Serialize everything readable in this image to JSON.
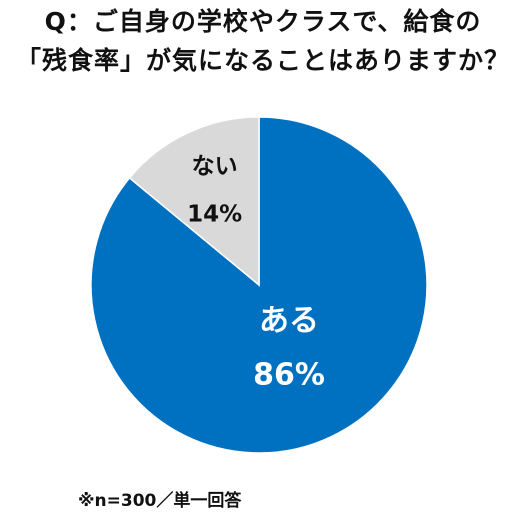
{
  "title_lines": [
    "Q：ご自身の学校やクラスで、給食の",
    "「残食率」が気になることはありますか？"
  ],
  "note": "※n=300／単一回答",
  "chart_data": {
    "type": "pie",
    "categories": [
      "ある",
      "ない"
    ],
    "values": [
      86,
      14
    ],
    "value_labels": [
      "86%",
      "14%"
    ],
    "colors": [
      "#0070C0",
      "#D9D9D9"
    ],
    "label_colors": [
      "#FFFFFF",
      "#111111"
    ],
    "start": "12 o'clock",
    "direction": "clockwise",
    "legend": "none"
  }
}
